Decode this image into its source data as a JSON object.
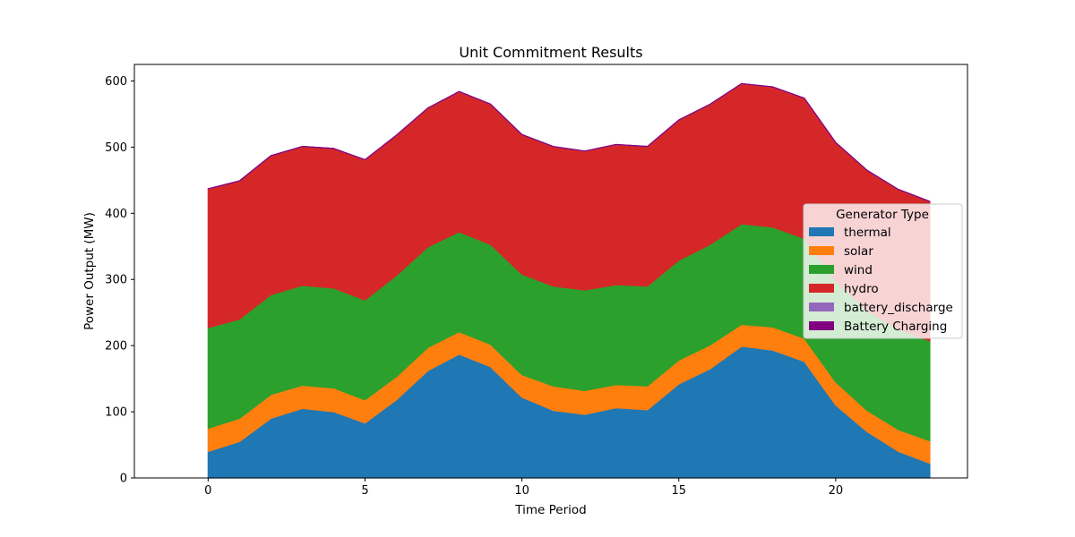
{
  "chart_data": {
    "type": "area",
    "stacked": true,
    "title": "Unit Commitment Results",
    "xlabel": "Time Period",
    "ylabel": "Power Output (MW)",
    "xlim": [
      -2.35,
      24.2
    ],
    "ylim": [
      0,
      625
    ],
    "xticks": [
      0,
      5,
      10,
      15,
      20
    ],
    "yticks": [
      0,
      100,
      200,
      300,
      400,
      500,
      600
    ],
    "x": [
      0,
      1,
      2,
      3,
      4,
      5,
      6,
      7,
      8,
      9,
      10,
      11,
      12,
      13,
      14,
      15,
      16,
      17,
      18,
      19,
      20,
      21,
      22,
      23
    ],
    "legend": {
      "title": "Generator Type",
      "placement": "center-right"
    },
    "series": [
      {
        "name": "thermal",
        "color": "#1f77b4",
        "values": [
          40,
          55,
          90,
          105,
          100,
          83,
          118,
          162,
          187,
          168,
          122,
          102,
          96,
          106,
          103,
          142,
          165,
          199,
          193,
          176,
          110,
          70,
          40,
          22
        ]
      },
      {
        "name": "solar",
        "color": "#ff7f0e",
        "values": [
          35,
          35,
          36,
          35,
          36,
          35,
          35,
          35,
          34,
          34,
          34,
          37,
          36,
          35,
          36,
          36,
          36,
          33,
          35,
          35,
          35,
          32,
          33,
          34
        ]
      },
      {
        "name": "wind",
        "color": "#2ca02c",
        "values": [
          152,
          150,
          151,
          151,
          151,
          151,
          153,
          152,
          151,
          151,
          152,
          151,
          152,
          151,
          151,
          151,
          152,
          152,
          151,
          151,
          152,
          151,
          152,
          151
        ]
      },
      {
        "name": "hydro",
        "color": "#d62728",
        "values": [
          210,
          209,
          210,
          210,
          211,
          212,
          212,
          210,
          212,
          212,
          211,
          211,
          210,
          212,
          211,
          212,
          212,
          212,
          212,
          212,
          210,
          212,
          211,
          211
        ]
      },
      {
        "name": "battery_discharge",
        "color": "#9467bd",
        "values": [
          0,
          0,
          0,
          0,
          0,
          0,
          0,
          0,
          0,
          0,
          0,
          0,
          0,
          0,
          0,
          0,
          0,
          0,
          0,
          0,
          0,
          0,
          0,
          0
        ]
      },
      {
        "name": "Battery Charging",
        "color": "#800080",
        "values": [
          0,
          0,
          0,
          0,
          0,
          0,
          0,
          0,
          0,
          0,
          0,
          0,
          0,
          0,
          0,
          0,
          0,
          0,
          0,
          0,
          0,
          0,
          0,
          0
        ]
      }
    ]
  }
}
